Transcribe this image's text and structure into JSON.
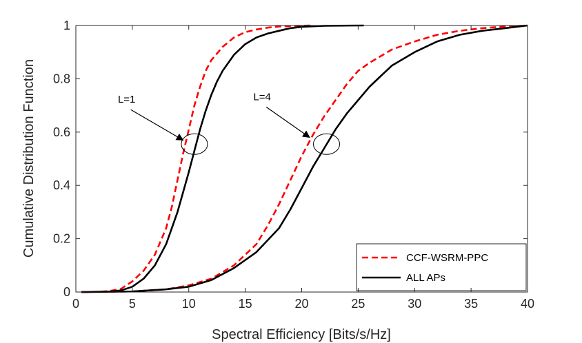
{
  "chart_data": {
    "type": "line",
    "title": "",
    "xlabel": "Spectral Efficiency [Bits/s/Hz]",
    "ylabel": "Cumulative Distribution Function",
    "xlim": [
      0,
      40
    ],
    "ylim": [
      0,
      1
    ],
    "xticks": [
      "0",
      "5",
      "10",
      "15",
      "20",
      "25",
      "30",
      "35",
      "40"
    ],
    "yticks": [
      "0",
      "0.2",
      "0.4",
      "0.6",
      "0.8",
      "1"
    ],
    "grid": false,
    "legend_position": "bottom-right",
    "legend": [
      {
        "name": "CCF-WSRM-PPC",
        "color": "#ff0000",
        "style": "dashed"
      },
      {
        "name": "ALL APs",
        "color": "#000000",
        "style": "solid"
      }
    ],
    "series": [
      {
        "name": "CCF-WSRM-PPC (L=1)",
        "legend": "CCF-WSRM-PPC",
        "color": "#ff0000",
        "style": "dashed",
        "x": [
          0.5,
          2,
          3,
          4,
          5,
          6,
          7,
          8,
          8.5,
          9,
          9.5,
          10,
          10.5,
          11,
          11.5,
          12,
          13,
          14,
          15,
          16,
          17,
          18,
          19,
          20,
          21
        ],
        "y": [
          0,
          0.001,
          0.004,
          0.012,
          0.04,
          0.08,
          0.14,
          0.24,
          0.32,
          0.42,
          0.52,
          0.61,
          0.7,
          0.77,
          0.83,
          0.87,
          0.92,
          0.955,
          0.975,
          0.985,
          0.992,
          0.996,
          0.998,
          0.999,
          1
        ]
      },
      {
        "name": "ALL APs (L=1)",
        "legend": "ALL APs",
        "color": "#000000",
        "style": "solid",
        "x": [
          0.5,
          2,
          3,
          4,
          5,
          6,
          7,
          8,
          9,
          10,
          10.5,
          11,
          11.5,
          12,
          12.5,
          13,
          14,
          15,
          16,
          17,
          18,
          19,
          20,
          22,
          25.5
        ],
        "y": [
          0,
          0.001,
          0.002,
          0.006,
          0.02,
          0.05,
          0.1,
          0.18,
          0.3,
          0.45,
          0.53,
          0.61,
          0.68,
          0.74,
          0.79,
          0.83,
          0.89,
          0.93,
          0.955,
          0.97,
          0.98,
          0.99,
          0.995,
          0.999,
          1
        ]
      },
      {
        "name": "CCF-WSRM-PPC (L=4)",
        "legend": "CCF-WSRM-PPC",
        "color": "#ff0000",
        "style": "dashed",
        "x": [
          0.5,
          5,
          8,
          10,
          12,
          14,
          16,
          17,
          18,
          19,
          20,
          21,
          22,
          23,
          24,
          25,
          26,
          28,
          30,
          32,
          34,
          36,
          38,
          40
        ],
        "y": [
          0,
          0.002,
          0.01,
          0.025,
          0.05,
          0.1,
          0.18,
          0.25,
          0.33,
          0.42,
          0.51,
          0.59,
          0.66,
          0.72,
          0.78,
          0.83,
          0.86,
          0.91,
          0.94,
          0.965,
          0.98,
          0.99,
          0.996,
          1
        ]
      },
      {
        "name": "ALL APs (L=4)",
        "legend": "ALL APs",
        "color": "#000000",
        "style": "solid",
        "x": [
          0.5,
          5,
          8,
          10,
          12,
          14,
          16,
          18,
          19,
          20,
          21,
          22,
          23,
          24,
          25,
          26,
          27,
          28,
          30,
          32,
          34,
          36,
          38,
          40
        ],
        "y": [
          0,
          0.002,
          0.01,
          0.02,
          0.045,
          0.09,
          0.15,
          0.24,
          0.31,
          0.39,
          0.47,
          0.54,
          0.61,
          0.67,
          0.72,
          0.77,
          0.81,
          0.85,
          0.9,
          0.94,
          0.965,
          0.98,
          0.99,
          1
        ]
      }
    ],
    "annotations": [
      {
        "text": "L=1",
        "label_at": [
          4.5,
          0.71
        ],
        "arrow_to": [
          9.5,
          0.57
        ],
        "ellipse_center": [
          10.5,
          0.555
        ]
      },
      {
        "text": "L=4",
        "label_at": [
          16.5,
          0.72
        ],
        "arrow_to": [
          20.7,
          0.58
        ],
        "ellipse_center": [
          22.2,
          0.555
        ]
      }
    ]
  }
}
